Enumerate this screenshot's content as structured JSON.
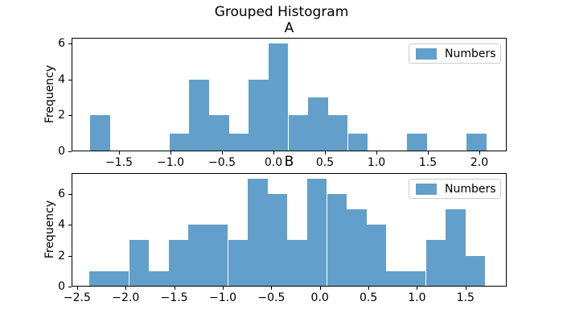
{
  "figure": {
    "title": "Grouped Histogram",
    "background": "#ffffff",
    "bar_color": "#62A0CB",
    "spine_color": "#000000"
  },
  "chart_data": [
    {
      "type": "bar",
      "subtype": "histogram",
      "title": "A",
      "ylabel": "Frequency",
      "legend": {
        "label": "Numbers",
        "position": "upper right",
        "swatch_color": "#62A0CB"
      },
      "bins": {
        "start": -1.78,
        "width": 0.1925,
        "counts": [
          2,
          0,
          0,
          0,
          1,
          4,
          2,
          1,
          4,
          6,
          2,
          3,
          2,
          1,
          0,
          0,
          1,
          0,
          0,
          1
        ]
      },
      "xlim": [
        -1.961,
        2.266
      ],
      "ylim": [
        0,
        6.3
      ],
      "xticks": {
        "values": [
          -1.5,
          -1.0,
          -0.5,
          0.0,
          0.5,
          1.0,
          1.5,
          2.0
        ],
        "labels": [
          "−1.5",
          "−1.0",
          "−0.5",
          "0.0",
          "0.5",
          "1.0",
          "1.5",
          "2.0"
        ]
      },
      "yticks": {
        "values": [
          0,
          2,
          4,
          6
        ],
        "labels": [
          "0",
          "2",
          "4",
          "6"
        ]
      },
      "grid": false
    },
    {
      "type": "bar",
      "subtype": "histogram",
      "title": "B",
      "ylabel": "Frequency",
      "legend": {
        "label": "Numbers",
        "position": "upper right",
        "swatch_color": "#62A0CB"
      },
      "bins": {
        "start": -2.373,
        "width": 0.2038,
        "counts": [
          1,
          1,
          3,
          1,
          3,
          4,
          4,
          3,
          7,
          6,
          3,
          7,
          6,
          5,
          4,
          1,
          1,
          3,
          5,
          2
        ]
      },
      "xlim": [
        -2.5575,
        1.9245
      ],
      "ylim": [
        0,
        7.35
      ],
      "xticks": {
        "values": [
          -2.5,
          -2.0,
          -1.5,
          -1.0,
          -0.5,
          0.0,
          0.5,
          1.0,
          1.5
        ],
        "labels": [
          "−2.5",
          "−2.0",
          "−1.5",
          "−1.0",
          "−0.5",
          "0.0",
          "0.5",
          "1.0",
          "1.5"
        ]
      },
      "yticks": {
        "values": [
          0,
          2,
          4,
          6
        ],
        "labels": [
          "0",
          "2",
          "4",
          "6"
        ]
      },
      "grid": false
    }
  ]
}
